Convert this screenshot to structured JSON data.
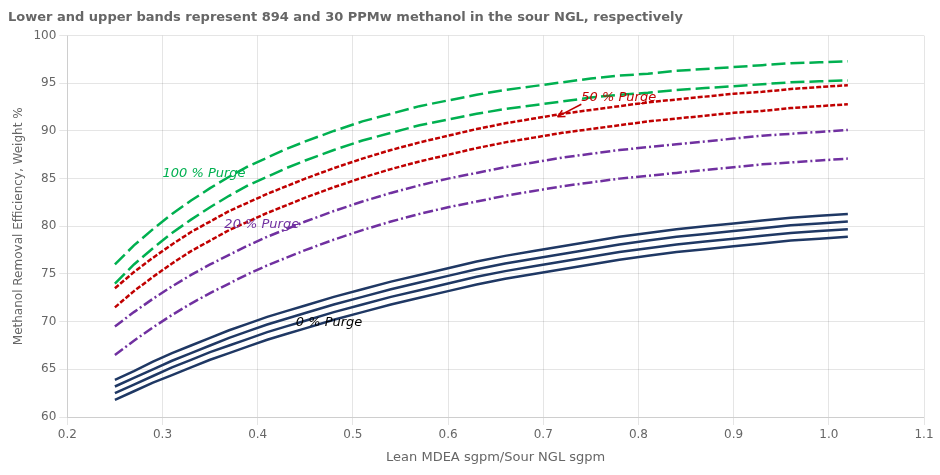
{
  "chart_data": {
    "type": "line",
    "title": "Lower and upper bands represent 894 and 30 PPMw methanol in the sour NGL, respectively",
    "x_label": "Lean MDEA sgpm/Sour NGL sgpm",
    "y_label": "Methanol Removal Efficiency, Weight %",
    "xlim": [
      0.2,
      1.1
    ],
    "ylim": [
      60,
      100
    ],
    "xticks": [
      0.2,
      0.3,
      0.4,
      0.5,
      0.6,
      0.7,
      0.8,
      0.9,
      {
        "value": 1.0,
        "label": "1.0"
      },
      1.1
    ],
    "yticks": [
      60,
      65,
      70,
      75,
      80,
      85,
      90,
      95,
      100
    ],
    "grid": true,
    "x": [
      0.25,
      0.27,
      0.29,
      0.31,
      0.33,
      0.35,
      0.37,
      0.39,
      0.41,
      0.43,
      0.45,
      0.48,
      0.51,
      0.54,
      0.57,
      0.6,
      0.63,
      0.66,
      0.69,
      0.72,
      0.75,
      0.78,
      0.81,
      0.84,
      0.87,
      0.9,
      0.93,
      0.96,
      0.99,
      1.02
    ],
    "series": [
      {
        "color": "#1f3864",
        "line_style": "solid",
        "values": [
          61.8,
          62.7,
          63.6,
          64.4,
          65.2,
          66.0,
          66.7,
          67.4,
          68.1,
          68.7,
          69.3,
          70.2,
          71.0,
          71.8,
          72.5,
          73.2,
          73.9,
          74.5,
          75.0,
          75.5,
          76.0,
          76.5,
          76.9,
          77.3,
          77.6,
          77.9,
          78.2,
          78.5,
          78.7,
          78.9
        ]
      },
      {
        "color": "#1f3864",
        "line_style": "solid",
        "values": [
          62.5,
          63.4,
          64.3,
          65.2,
          66.0,
          66.8,
          67.5,
          68.2,
          68.9,
          69.5,
          70.1,
          71.0,
          71.8,
          72.6,
          73.3,
          74.0,
          74.7,
          75.3,
          75.8,
          76.3,
          76.8,
          77.3,
          77.7,
          78.1,
          78.4,
          78.7,
          79.0,
          79.3,
          79.5,
          79.7
        ]
      },
      {
        "color": "#1f3864",
        "line_style": "solid",
        "values": [
          63.2,
          64.1,
          65.0,
          65.9,
          66.7,
          67.5,
          68.3,
          69.0,
          69.7,
          70.3,
          70.9,
          71.8,
          72.6,
          73.4,
          74.1,
          74.8,
          75.5,
          76.1,
          76.6,
          77.1,
          77.6,
          78.1,
          78.5,
          78.9,
          79.2,
          79.5,
          79.8,
          80.1,
          80.3,
          80.5
        ]
      },
      {
        "color": "#1f3864",
        "line_style": "solid",
        "values": [
          63.9,
          64.8,
          65.8,
          66.7,
          67.5,
          68.3,
          69.1,
          69.8,
          70.5,
          71.1,
          71.7,
          72.6,
          73.4,
          74.2,
          74.9,
          75.6,
          76.3,
          76.9,
          77.4,
          77.9,
          78.4,
          78.9,
          79.3,
          79.7,
          80.0,
          80.3,
          80.6,
          80.9,
          81.1,
          81.3
        ]
      },
      {
        "color": "#7030a0",
        "line_style": "dashdot",
        "values": [
          66.5,
          68.0,
          69.4,
          70.7,
          71.9,
          73.0,
          74.0,
          75.0,
          75.9,
          76.7,
          77.5,
          78.6,
          79.6,
          80.5,
          81.3,
          82.0,
          82.6,
          83.2,
          83.7,
          84.2,
          84.6,
          85.0,
          85.3,
          85.6,
          85.9,
          86.2,
          86.5,
          86.7,
          86.9,
          87.1
        ]
      },
      {
        "color": "#7030a0",
        "line_style": "dashdot",
        "values": [
          69.5,
          71.0,
          72.4,
          73.7,
          74.9,
          76.0,
          77.0,
          78.0,
          78.9,
          79.7,
          80.5,
          81.6,
          82.6,
          83.5,
          84.3,
          85.0,
          85.6,
          86.2,
          86.7,
          87.2,
          87.6,
          88.0,
          88.3,
          88.6,
          88.9,
          89.2,
          89.5,
          89.7,
          89.9,
          90.1
        ]
      },
      {
        "color": "#c00000",
        "line_style": "dotted",
        "values": [
          71.5,
          73.2,
          74.7,
          76.1,
          77.4,
          78.5,
          79.6,
          80.5,
          81.4,
          82.2,
          83.0,
          84.1,
          85.1,
          86.0,
          86.8,
          87.5,
          88.2,
          88.8,
          89.3,
          89.8,
          90.2,
          90.6,
          91.0,
          91.3,
          91.6,
          91.9,
          92.1,
          92.4,
          92.6,
          92.8
        ]
      },
      {
        "color": "#c00000",
        "line_style": "dotted",
        "values": [
          73.5,
          75.2,
          76.7,
          78.1,
          79.4,
          80.5,
          81.6,
          82.5,
          83.4,
          84.2,
          85.0,
          86.1,
          87.1,
          88.0,
          88.8,
          89.5,
          90.2,
          90.8,
          91.3,
          91.8,
          92.2,
          92.6,
          93.0,
          93.3,
          93.6,
          93.9,
          94.1,
          94.4,
          94.6,
          94.8
        ]
      },
      {
        "color": "#00b050",
        "line_style": "dashed",
        "values": [
          74.0,
          76.0,
          77.7,
          79.3,
          80.7,
          82.0,
          83.2,
          84.3,
          85.2,
          86.1,
          86.9,
          88.0,
          89.0,
          89.8,
          90.6,
          91.2,
          91.8,
          92.3,
          92.7,
          93.1,
          93.5,
          93.8,
          94.0,
          94.3,
          94.5,
          94.7,
          94.9,
          95.1,
          95.2,
          95.3
        ]
      },
      {
        "color": "#00b050",
        "line_style": "dashed",
        "values": [
          76.0,
          78.0,
          79.7,
          81.3,
          82.7,
          84.0,
          85.2,
          86.3,
          87.2,
          88.1,
          88.9,
          90.0,
          91.0,
          91.8,
          92.6,
          93.2,
          93.8,
          94.3,
          94.7,
          95.1,
          95.5,
          95.8,
          96.0,
          96.3,
          96.5,
          96.7,
          96.9,
          97.1,
          97.2,
          97.3
        ]
      }
    ],
    "annotations": [
      {
        "text": "0 % Purge",
        "x": 0.44,
        "y": 69.2,
        "color": "#000000"
      },
      {
        "text": "20 % Purge",
        "x": 0.365,
        "y": 79.5,
        "color": "#7030a0"
      },
      {
        "text": "100 % Purge",
        "x": 0.3,
        "y": 84.8,
        "color": "#00b050"
      },
      {
        "text": "50 % Purge",
        "x": 0.74,
        "y": 92.8,
        "arrow_x": 0.715,
        "arrow_y": 91.5,
        "color": "#c00000"
      }
    ]
  }
}
